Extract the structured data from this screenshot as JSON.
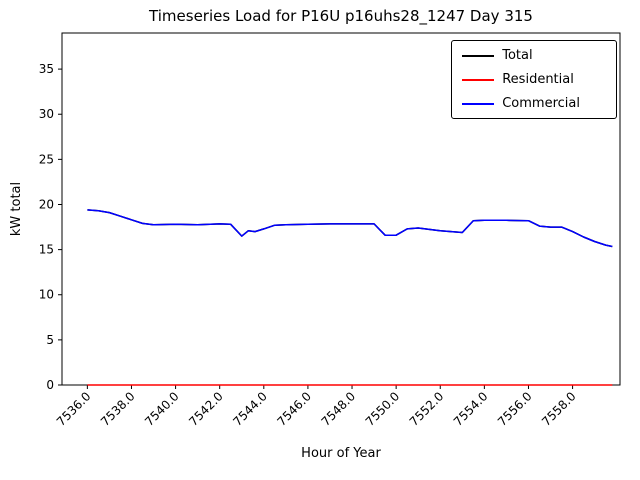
{
  "chart_data": {
    "type": "line",
    "title": "Timeseries Load for P16U p16uhs28_1247  Day 315",
    "xlabel": "Hour of Year",
    "ylabel": "kW total",
    "xlim": [
      7534.85,
      7560.15
    ],
    "ylim": [
      0,
      39
    ],
    "xticks": [
      7536,
      7538,
      7540,
      7542,
      7544,
      7546,
      7548,
      7550,
      7552,
      7554,
      7556,
      7558
    ],
    "yticks": [
      0,
      5,
      10,
      15,
      20,
      25,
      30,
      35
    ],
    "grid": false,
    "legend_position": "upper right",
    "x": [
      7536,
      7536.5,
      7537,
      7537.5,
      7538,
      7538.5,
      7539,
      7540,
      7541,
      7542,
      7542.5,
      7543,
      7543.3,
      7543.6,
      7544,
      7544.5,
      7545,
      7546,
      7547,
      7548,
      7549,
      7549.5,
      7550,
      7550.5,
      7551,
      7552,
      7552.5,
      7553,
      7553.5,
      7554,
      7555,
      7556,
      7556.5,
      7557,
      7557.5,
      7558,
      7558.5,
      7559,
      7559.5,
      7559.8
    ],
    "series": [
      {
        "name": "Total",
        "color": "#000000",
        "values": [
          19.4,
          19.3,
          19.1,
          18.7,
          18.3,
          17.9,
          17.75,
          17.8,
          17.75,
          17.85,
          17.8,
          16.5,
          17.1,
          17.0,
          17.3,
          17.7,
          17.75,
          17.8,
          17.85,
          17.85,
          17.85,
          16.6,
          16.6,
          17.3,
          17.4,
          17.1,
          17.0,
          16.9,
          18.2,
          18.25,
          18.25,
          18.2,
          17.6,
          17.5,
          17.5,
          17.0,
          16.4,
          15.9,
          15.5,
          15.35
        ]
      },
      {
        "name": "Residential",
        "color": "#ff0000",
        "values": [
          0,
          0,
          0,
          0,
          0,
          0,
          0,
          0,
          0,
          0,
          0,
          0,
          0,
          0,
          0,
          0,
          0,
          0,
          0,
          0,
          0,
          0,
          0,
          0,
          0,
          0,
          0,
          0,
          0,
          0,
          0,
          0,
          0,
          0,
          0,
          0,
          0,
          0,
          0,
          0
        ]
      },
      {
        "name": "Commercial",
        "color": "#0000ff",
        "values": [
          19.4,
          19.3,
          19.1,
          18.7,
          18.3,
          17.9,
          17.75,
          17.8,
          17.75,
          17.85,
          17.8,
          16.5,
          17.1,
          17.0,
          17.3,
          17.7,
          17.75,
          17.8,
          17.85,
          17.85,
          17.85,
          16.6,
          16.6,
          17.3,
          17.4,
          17.1,
          17.0,
          16.9,
          18.2,
          18.25,
          18.25,
          18.2,
          17.6,
          17.5,
          17.5,
          17.0,
          16.4,
          15.9,
          15.5,
          15.35
        ]
      }
    ]
  }
}
